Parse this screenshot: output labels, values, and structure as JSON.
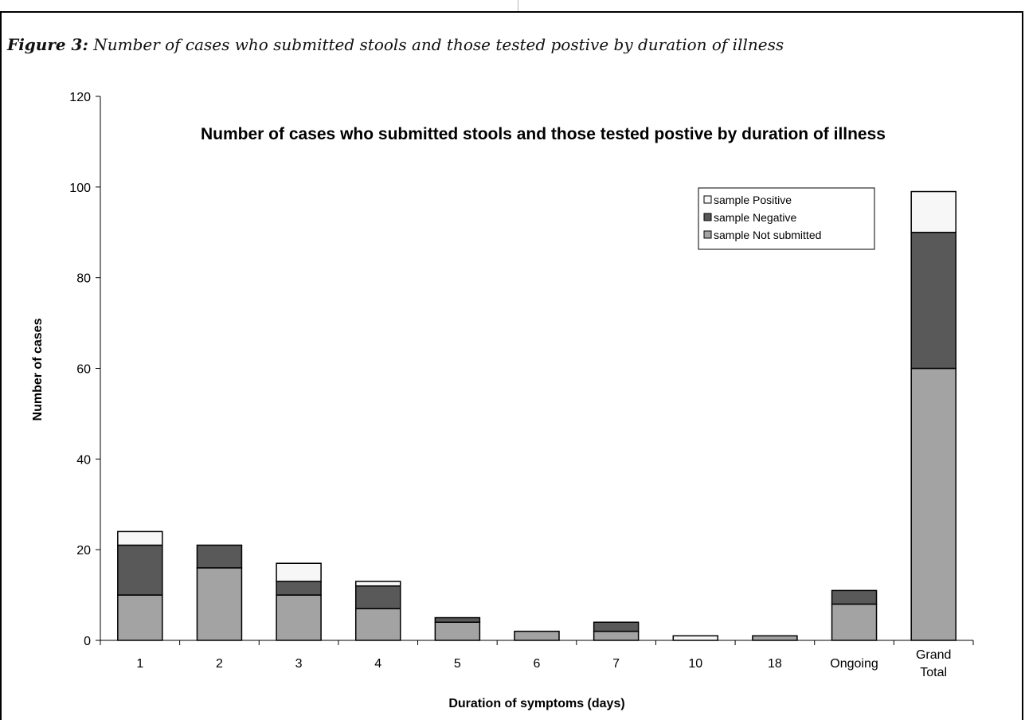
{
  "caption": {
    "label": "Figure 3:",
    "text": "Number of cases who submitted stools and those tested postive by duration of illness"
  },
  "chart_data": {
    "type": "bar",
    "stacked": true,
    "title": "Number of cases who submitted stools and those tested postive by duration of illness",
    "xlabel": "Duration of symptoms (days)",
    "ylabel": "Number of cases",
    "ylim": [
      0,
      120
    ],
    "yticks": [
      0,
      20,
      40,
      60,
      80,
      100,
      120
    ],
    "categories": [
      "1",
      "2",
      "3",
      "4",
      "5",
      "6",
      "7",
      "10",
      "18",
      "Ongoing",
      "Grand Total"
    ],
    "series": [
      {
        "name": "sample Not submitted",
        "color": "#a3a3a3",
        "values": [
          10,
          16,
          10,
          7,
          4,
          2,
          2,
          0,
          1,
          8,
          60
        ]
      },
      {
        "name": "sample Negative",
        "color": "#595959",
        "values": [
          11,
          5,
          3,
          5,
          1,
          0,
          2,
          0,
          0,
          3,
          30
        ]
      },
      {
        "name": "sample Positive",
        "color": "#f7f7f7",
        "values": [
          3,
          0,
          4,
          1,
          0,
          0,
          0,
          1,
          0,
          0,
          9
        ]
      }
    ],
    "legend_order": [
      "sample Positive",
      "sample Negative",
      "sample Not submitted"
    ],
    "legend_position": "top-right",
    "grid": false
  }
}
